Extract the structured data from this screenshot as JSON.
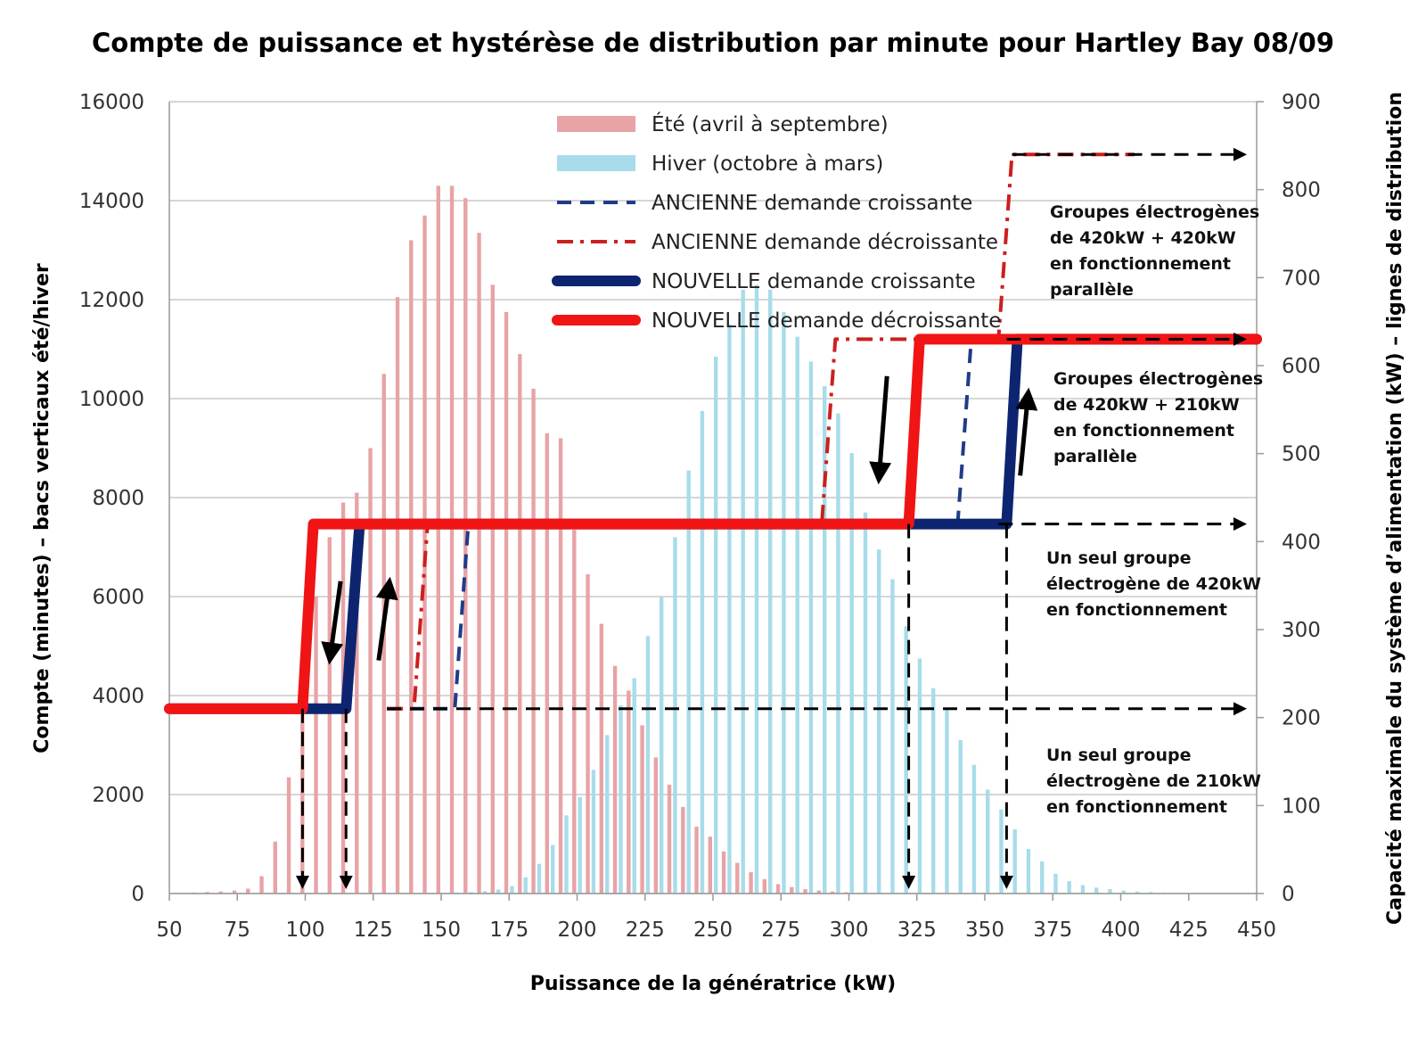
{
  "chart_data": {
    "type": "bar",
    "title": "Compte de puissance et hystérèse de distribution par minute pour Hartley Bay 08/09",
    "xlabel": "Puissance de la génératrice (kW)",
    "ylabel": "Compte (minutes) – bacs verticaux été/hiver",
    "y2label": "Capacité maximale du système d’alimentation (kW) – lignes de distribution",
    "xlim": [
      50,
      450
    ],
    "ylim": [
      0,
      16000
    ],
    "y2lim": [
      0,
      900
    ],
    "grid": "horizontal",
    "x_ticks": [
      "50",
      "75",
      "100",
      "125",
      "150",
      "175",
      "200",
      "225",
      "250",
      "275",
      "300",
      "325",
      "350",
      "375",
      "400",
      "425",
      "450"
    ],
    "y_ticks": [
      "0",
      "2000",
      "4000",
      "6000",
      "8000",
      "10000",
      "12000",
      "14000",
      "16000"
    ],
    "y2_ticks": [
      "0",
      "100",
      "200",
      "300",
      "400",
      "500",
      "600",
      "700",
      "800",
      "900"
    ],
    "legend_position": "top-center",
    "series": [
      {
        "name": "Été (avril à septembre)",
        "kind": "bar",
        "color": "#e8a3a6",
        "x": [
          55,
          60,
          65,
          70,
          75,
          80,
          85,
          90,
          95,
          100,
          105,
          110,
          115,
          120,
          125,
          130,
          135,
          140,
          145,
          150,
          155,
          160,
          165,
          170,
          175,
          180,
          185,
          190,
          195,
          200,
          205,
          210,
          215,
          220,
          225,
          230,
          235,
          240,
          245,
          250,
          255,
          260,
          265,
          270,
          275,
          280,
          285,
          290,
          295,
          300,
          305,
          310,
          315,
          320,
          325,
          330
        ],
        "values": [
          10,
          20,
          30,
          40,
          60,
          100,
          350,
          1050,
          2350,
          3900,
          6000,
          7200,
          7900,
          8100,
          9000,
          10500,
          12050,
          13200,
          13700,
          14300,
          14300,
          14050,
          13350,
          12300,
          11750,
          10900,
          10200,
          9300,
          9200,
          7350,
          6450,
          5450,
          4600,
          4100,
          3400,
          2750,
          2200,
          1750,
          1350,
          1150,
          850,
          620,
          430,
          290,
          190,
          130,
          90,
          60,
          40,
          25,
          15,
          10,
          5,
          5,
          0,
          0
        ]
      },
      {
        "name": "Hiver (octobre à mars)",
        "kind": "bar",
        "color": "#a8dcea",
        "x": [
          55,
          60,
          65,
          70,
          75,
          80,
          85,
          90,
          95,
          100,
          105,
          110,
          115,
          120,
          125,
          130,
          135,
          140,
          145,
          150,
          155,
          160,
          165,
          170,
          175,
          180,
          185,
          190,
          195,
          200,
          205,
          210,
          215,
          220,
          225,
          230,
          235,
          240,
          245,
          250,
          255,
          260,
          265,
          270,
          275,
          280,
          285,
          290,
          295,
          300,
          305,
          310,
          315,
          320,
          325,
          330,
          335,
          340,
          345,
          350,
          355,
          360,
          365,
          370,
          375,
          380,
          385,
          390,
          395,
          400,
          405,
          410,
          415,
          420,
          425,
          430,
          435,
          440,
          445
        ],
        "values": [
          5,
          5,
          5,
          5,
          5,
          5,
          5,
          5,
          5,
          10,
          10,
          10,
          10,
          10,
          10,
          10,
          10,
          10,
          10,
          10,
          20,
          30,
          50,
          80,
          150,
          330,
          600,
          980,
          1580,
          1950,
          2500,
          3200,
          3800,
          4350,
          5200,
          6000,
          7200,
          8550,
          9750,
          10850,
          11500,
          12200,
          12300,
          12200,
          11750,
          11250,
          10750,
          10250,
          9700,
          8900,
          7700,
          6950,
          6350,
          5400,
          4750,
          4150,
          3750,
          3100,
          2600,
          2100,
          1700,
          1300,
          900,
          650,
          400,
          250,
          170,
          120,
          90,
          60,
          40,
          30,
          20,
          15,
          10,
          10,
          5,
          5,
          5
        ]
      },
      {
        "name": "ANCIENNE demande croissante",
        "kind": "line",
        "axis": "y2",
        "style": "dashed",
        "color": "#1f3c88",
        "x": [
          130,
          155,
          160,
          340,
          345,
          360
        ],
        "y": [
          210,
          210,
          420,
          420,
          630,
          630
        ]
      },
      {
        "name": "ANCIENNE demande décroissante",
        "kind": "line",
        "axis": "y2",
        "style": "dash-dot",
        "color": "#cc1f1f",
        "x": [
          130,
          140,
          145,
          290,
          295,
          355,
          360,
          405
        ],
        "y": [
          210,
          210,
          420,
          420,
          630,
          630,
          840,
          840
        ]
      },
      {
        "name": "NOUVELLE demande croissante",
        "kind": "line",
        "axis": "y2",
        "style": "solid",
        "color": "#0d2570",
        "x": [
          50,
          115,
          120,
          358,
          362,
          450
        ],
        "y": [
          210,
          210,
          420,
          420,
          630,
          630
        ]
      },
      {
        "name": "NOUVELLE demande décroissante",
        "kind": "line",
        "axis": "y2",
        "style": "solid",
        "color": "#f01414",
        "x": [
          50,
          99,
          103,
          322,
          326,
          450
        ],
        "y": [
          210,
          210,
          420,
          420,
          630,
          630
        ]
      }
    ],
    "capacity_arrows": [
      {
        "y2": 210,
        "x_from": 130,
        "x_to": 450
      },
      {
        "y2": 420,
        "x_from": 355,
        "x_to": 450
      },
      {
        "y2": 630,
        "x_from": 358,
        "x_to": 450
      },
      {
        "y2": 840,
        "x_from": 360,
        "x_to": 450
      }
    ],
    "threshold_arrows": [
      {
        "x": 99,
        "y2_from": 210
      },
      {
        "x": 115,
        "y2_from": 210
      },
      {
        "x": 322,
        "y2_from": 420
      },
      {
        "x": 358,
        "y2_from": 420
      }
    ],
    "annotations": [
      {
        "id": "g-420-420",
        "lines": [
          "Groupes électrogènes",
          "de 420kW + 420kW",
          "en fonctionnement",
          "parallèle"
        ]
      },
      {
        "id": "g-420-210",
        "lines": [
          "Groupes électrogènes",
          "de 420kW + 210kW",
          "en fonctionnement",
          "parallèle"
        ]
      },
      {
        "id": "g-420",
        "lines": [
          "Un seul groupe",
          "électrogène de 420kW",
          "en fonctionnement"
        ]
      },
      {
        "id": "g-210",
        "lines": [
          "Un seul groupe",
          "électrogène de 210kW",
          "en fonctionnement"
        ]
      }
    ]
  }
}
